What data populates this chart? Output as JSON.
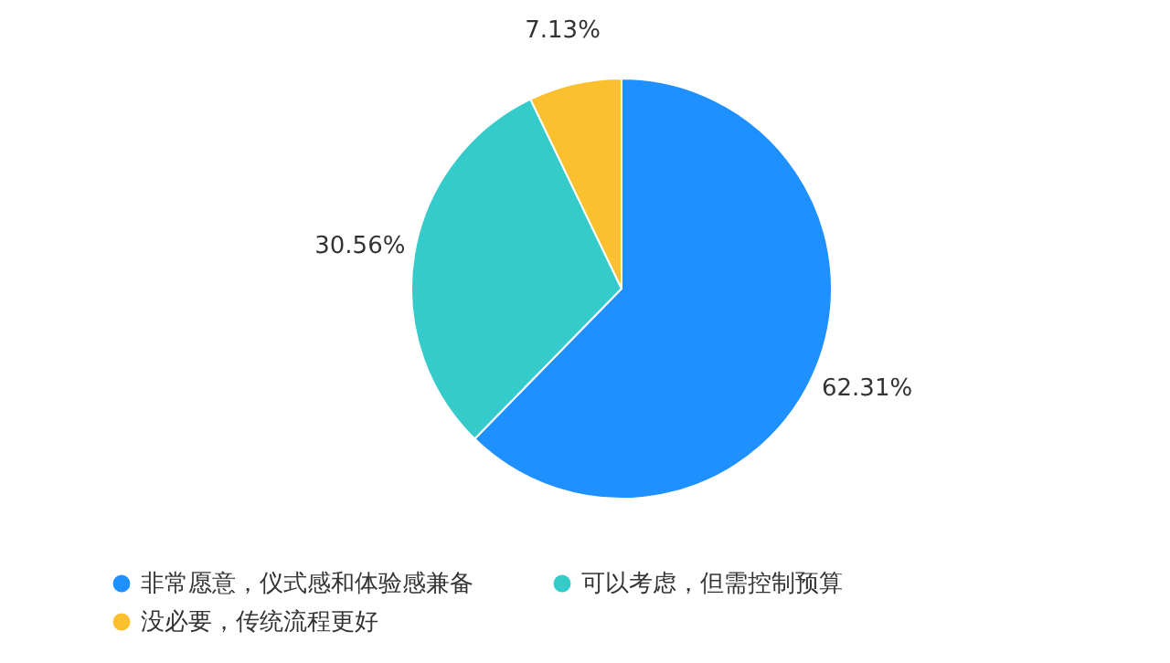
{
  "chart_data": {
    "type": "pie",
    "categories": [
      "非常愿意，仪式感和体验感兼备",
      "可以考虑，但需控制预算",
      "没必要，传统流程更好"
    ],
    "values": [
      62.31,
      30.56,
      7.13
    ],
    "colors": [
      "#1e90ff",
      "#36cbcb",
      "#fbc02d"
    ],
    "value_labels": [
      "62.31%",
      "30.56%",
      "7.13%"
    ],
    "legend": "bottom left"
  }
}
